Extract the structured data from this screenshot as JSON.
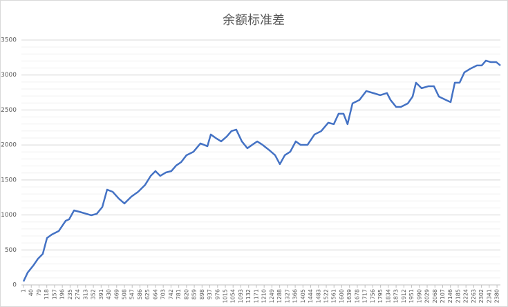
{
  "chart_data": {
    "type": "line",
    "title": "余额标准差",
    "x": [
      1,
      22,
      50,
      74,
      98,
      119,
      143,
      178,
      213,
      230,
      255,
      282,
      317,
      341,
      369,
      397,
      421,
      449,
      480,
      508,
      543,
      577,
      612,
      640,
      664,
      688,
      716,
      744,
      768,
      793,
      820,
      855,
      890,
      925,
      942,
      966,
      994,
      1022,
      1046,
      1070,
      1098,
      1126,
      1150,
      1175,
      1202,
      1237,
      1265,
      1289,
      1314,
      1341,
      1369,
      1393,
      1428,
      1463,
      1497,
      1532,
      1560,
      1584,
      1609,
      1629,
      1654,
      1689,
      1723,
      1758,
      1793,
      1827,
      1845,
      1873,
      1897,
      1932,
      1956,
      1973,
      2001,
      2036,
      2063,
      2088,
      2123,
      2147,
      2168,
      2192,
      2216,
      2244,
      2279,
      2303,
      2324,
      2348,
      2376,
      2397
    ],
    "series": [
      {
        "name": "余额标准差",
        "color": "#4472c4",
        "values": [
          50,
          177,
          276,
          375,
          444,
          670,
          720,
          770,
          917,
          937,
          1065,
          1045,
          1016,
          996,
          1016,
          1114,
          1361,
          1331,
          1233,
          1164,
          1262,
          1331,
          1430,
          1558,
          1627,
          1558,
          1607,
          1627,
          1706,
          1755,
          1854,
          1903,
          2022,
          1982,
          2150,
          2101,
          2051,
          2120,
          2199,
          2219,
          2051,
          1953,
          2002,
          2051,
          2002,
          1923,
          1854,
          1726,
          1854,
          1903,
          2051,
          2002,
          2002,
          2150,
          2199,
          2318,
          2298,
          2446,
          2446,
          2298,
          2594,
          2643,
          2771,
          2742,
          2712,
          2742,
          2643,
          2544,
          2544,
          2594,
          2692,
          2890,
          2811,
          2840,
          2840,
          2692,
          2643,
          2613,
          2890,
          2890,
          3037,
          3087,
          3136,
          3136,
          3205,
          3185,
          3185,
          3136
        ]
      }
    ],
    "xlim": [
      1,
      2397
    ],
    "xticks": [
      1,
      40,
      79,
      118,
      157,
      196,
      235,
      274,
      313,
      352,
      391,
      430,
      469,
      508,
      547,
      586,
      625,
      664,
      703,
      742,
      781,
      820,
      859,
      898,
      937,
      976,
      1015,
      1054,
      1093,
      1132,
      1171,
      1210,
      1249,
      1288,
      1327,
      1366,
      1405,
      1444,
      1483,
      1522,
      1561,
      1600,
      1639,
      1678,
      1717,
      1756,
      1795,
      1834,
      1873,
      1912,
      1951,
      1990,
      2029,
      2068,
      2107,
      2146,
      2185,
      2224,
      2263,
      2302,
      2341,
      2380
    ],
    "ylim": [
      0,
      3500
    ],
    "yticks": [
      0,
      500,
      1000,
      1500,
      2000,
      2500,
      3000,
      3500
    ],
    "grid": true,
    "ygrid_minor": 100
  }
}
